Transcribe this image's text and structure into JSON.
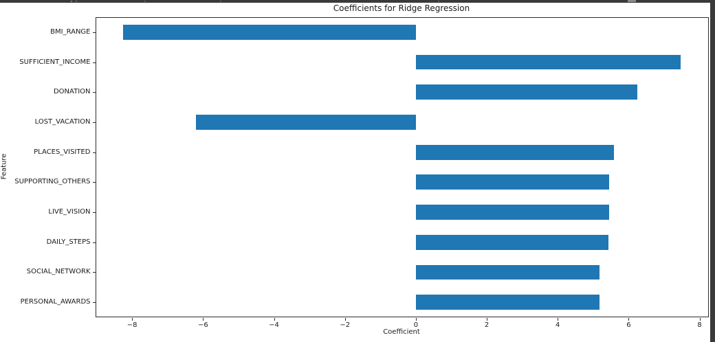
{
  "window": {
    "top_edge_color": "#3a3a3a",
    "right_edge_color": "#3a3a3a"
  },
  "chart_data": {
    "type": "bar",
    "orientation": "horizontal",
    "title": "Coefficients for Ridge Regression",
    "xlabel": "Coefficient",
    "ylabel": "Feature",
    "categories": [
      "BMI_RANGE",
      "SUFFICIENT_INCOME",
      "DONATION",
      "LOST_VACATION",
      "PLACES_VISITED",
      "SUPPORTING_OTHERS",
      "LIVE_VISION",
      "DAILY_STEPS",
      "SOCIAL_NETWORK",
      "PERSONAL_AWARDS"
    ],
    "values": [
      -8.25,
      7.46,
      6.25,
      -6.21,
      5.58,
      5.45,
      5.44,
      5.43,
      5.18,
      5.17
    ],
    "xticks": [
      -8,
      -6,
      -4,
      -2,
      0,
      2,
      4,
      6,
      8
    ],
    "xlim": [
      -9.04,
      8.25
    ],
    "bar_color": "#1f77b4",
    "grid": false,
    "legend": null
  }
}
